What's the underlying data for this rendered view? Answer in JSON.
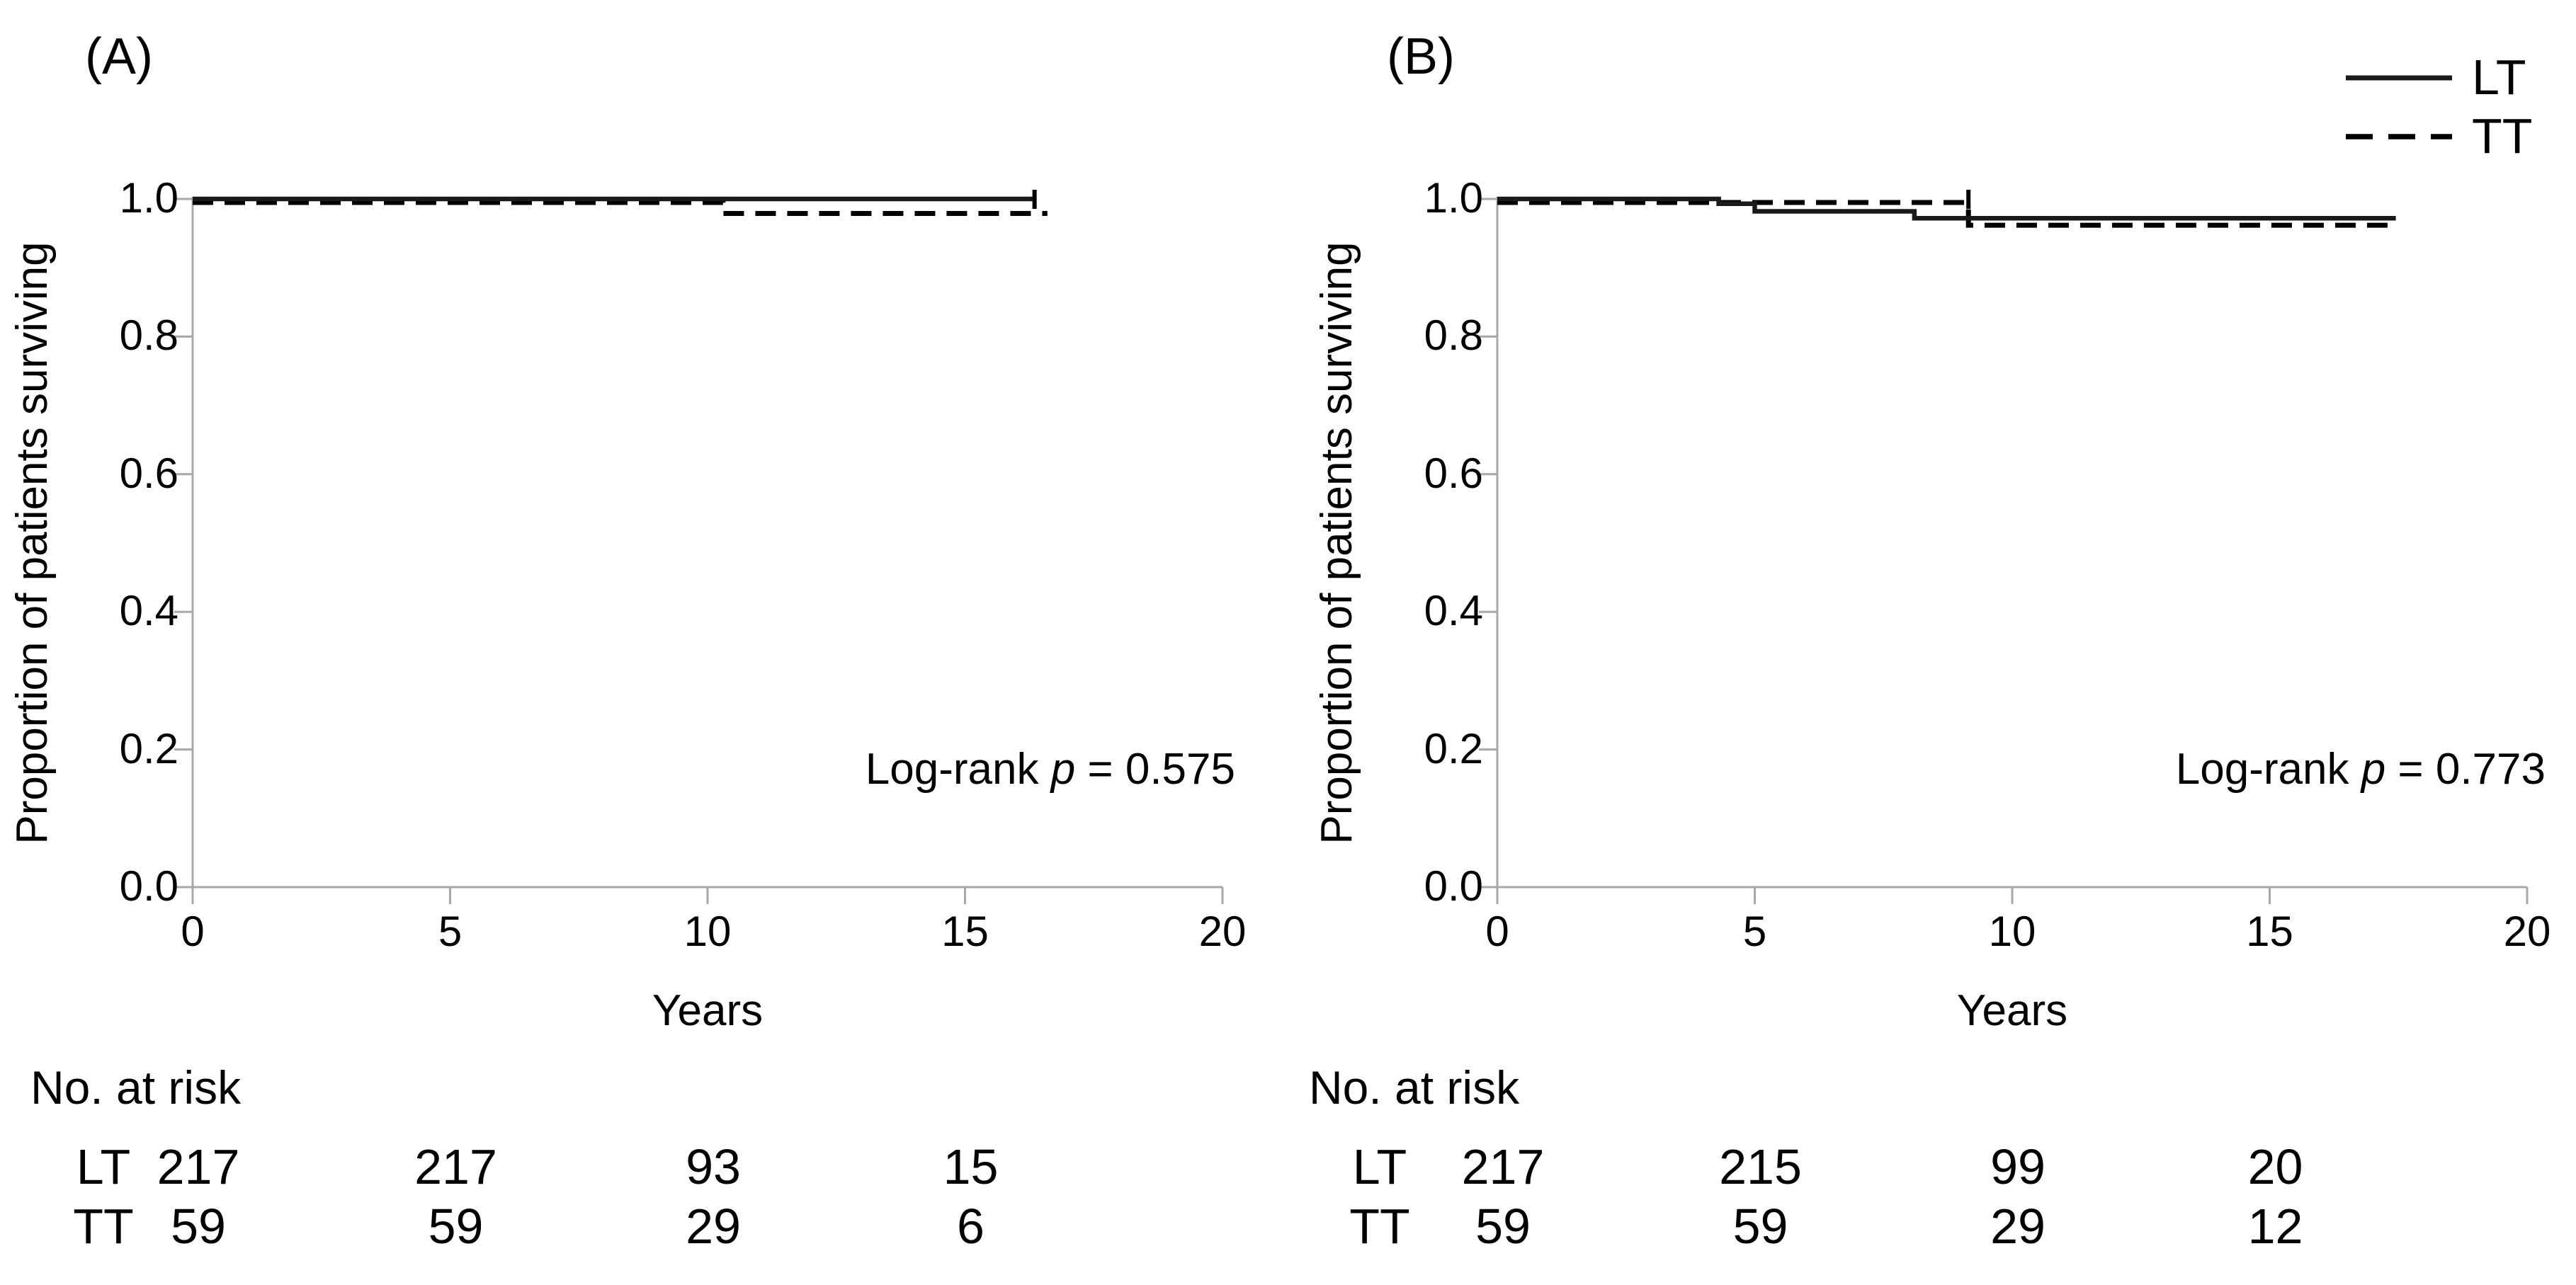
{
  "legend": {
    "items": [
      {
        "label": "LT",
        "line_style": "solid"
      },
      {
        "label": "TT",
        "line_style": "dashed"
      }
    ]
  },
  "colors": {
    "curve": "#000000",
    "curve_solid": "#1a1a1a",
    "axis": "#a8a8a8",
    "text": "#000000",
    "background": "#ffffff"
  },
  "chart_data": [
    {
      "type": "line",
      "subtype": "kaplan-meier-step",
      "panel_label": "(A)",
      "xlabel": "Years",
      "ylabel": "Proportion of patients surviving",
      "xlim": [
        0,
        20
      ],
      "ylim": [
        0.0,
        1.0
      ],
      "grid": false,
      "xticks": [
        "0",
        "5",
        "10",
        "15",
        "20"
      ],
      "ytick_labels": [
        "1.0",
        "0.8",
        "0.6",
        "0.4",
        "0.2",
        "0.0"
      ],
      "annotation": {
        "prefix": "Log-rank ",
        "italic": "p",
        "suffix": " = 0.575"
      },
      "series": [
        {
          "name": "LT",
          "line_style": "solid",
          "points": [
            [
              0,
              1.0
            ],
            [
              16.35,
              1.0
            ]
          ]
        },
        {
          "name": "TT",
          "line_style": "dashed",
          "points": [
            [
              0,
              1.0
            ],
            [
              10.3,
              0.984
            ],
            [
              16.6,
              0.984
            ]
          ]
        }
      ],
      "censor_ticks": [
        {
          "x": 16.35,
          "y": 1.0
        }
      ],
      "risk_table": {
        "header": "No. at risk",
        "time_points": [
          0,
          5,
          10,
          15
        ],
        "rows": [
          {
            "label": "LT",
            "values": [
              "217",
              "217",
              "93",
              "15"
            ]
          },
          {
            "label": "TT",
            "values": [
              "59",
              "59",
              "29",
              "6"
            ]
          }
        ]
      }
    },
    {
      "type": "line",
      "subtype": "kaplan-meier-step",
      "panel_label": "(B)",
      "xlabel": "Years",
      "ylabel": "Proportion of patients surviving",
      "xlim": [
        0,
        20
      ],
      "ylim": [
        0.0,
        1.0
      ],
      "grid": false,
      "xticks": [
        "0",
        "5",
        "10",
        "15",
        "20"
      ],
      "ytick_labels": [
        "1.0",
        "0.8",
        "0.6",
        "0.4",
        "0.2",
        "0.0"
      ],
      "annotation": {
        "prefix": "Log-rank ",
        "italic": "p",
        "suffix": " = 0.773"
      },
      "series": [
        {
          "name": "LT",
          "line_style": "solid",
          "points": [
            [
              0,
              1.0
            ],
            [
              4.3,
              0.993
            ],
            [
              5.0,
              0.982
            ],
            [
              8.1,
              0.972
            ],
            [
              17.45,
              0.972
            ]
          ]
        },
        {
          "name": "TT",
          "line_style": "dashed",
          "points": [
            [
              0,
              1.0
            ],
            [
              9.15,
              0.967
            ],
            [
              17.45,
              0.967
            ]
          ]
        }
      ],
      "censor_ticks": [
        {
          "x": 9.15,
          "y": 1.0
        }
      ],
      "risk_table": {
        "header": "No. at risk",
        "time_points": [
          0,
          5,
          10,
          15
        ],
        "rows": [
          {
            "label": "LT",
            "values": [
              "217",
              "215",
              "99",
              "20"
            ]
          },
          {
            "label": "TT",
            "values": [
              "59",
              "59",
              "29",
              "12"
            ]
          }
        ]
      }
    }
  ]
}
